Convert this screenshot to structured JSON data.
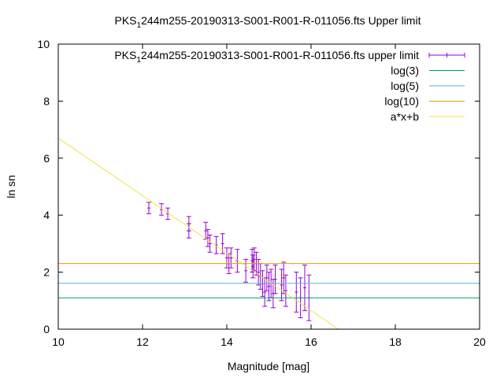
{
  "chart_data": {
    "type": "scatter",
    "title_parts": [
      "PKS",
      "1",
      "244m255-20190313-S001-R001-R-011056.fts Upper limit"
    ],
    "xlabel": "Magnitude [mag]",
    "ylabel": "ln sn",
    "xlim": [
      10,
      20
    ],
    "ylim": [
      0,
      10
    ],
    "xticks": [
      "10",
      "12",
      "14",
      "16",
      "18",
      "20"
    ],
    "yticks": [
      "0",
      "2",
      "4",
      "6",
      "8",
      "10"
    ],
    "grid": false,
    "legend_position": "top-right",
    "series": [
      {
        "name_parts": [
          "PKS",
          "1",
          "244m255-20190313-S001-R001-R-011056.fts upper limit"
        ],
        "kind": "errorbars",
        "color": "#9400d3",
        "points": [
          {
            "x": 12.15,
            "y": 4.25,
            "err": 0.2
          },
          {
            "x": 12.45,
            "y": 4.2,
            "err": 0.2
          },
          {
            "x": 12.6,
            "y": 4.05,
            "err": 0.2
          },
          {
            "x": 13.1,
            "y": 3.7,
            "err": 0.25
          },
          {
            "x": 13.1,
            "y": 3.45,
            "err": 0.25
          },
          {
            "x": 13.5,
            "y": 3.45,
            "err": 0.3
          },
          {
            "x": 13.55,
            "y": 3.2,
            "err": 0.3
          },
          {
            "x": 13.6,
            "y": 3.0,
            "err": 0.3
          },
          {
            "x": 13.75,
            "y": 2.95,
            "err": 0.3
          },
          {
            "x": 13.9,
            "y": 3.0,
            "err": 0.35
          },
          {
            "x": 14.0,
            "y": 2.5,
            "err": 0.35
          },
          {
            "x": 14.05,
            "y": 2.3,
            "err": 0.35
          },
          {
            "x": 14.1,
            "y": 2.5,
            "err": 0.35
          },
          {
            "x": 14.25,
            "y": 2.4,
            "err": 0.4
          },
          {
            "x": 14.45,
            "y": 2.05,
            "err": 0.4
          },
          {
            "x": 14.6,
            "y": 2.4,
            "err": 0.4
          },
          {
            "x": 14.62,
            "y": 2.2,
            "err": 0.4
          },
          {
            "x": 14.65,
            "y": 2.45,
            "err": 0.4
          },
          {
            "x": 14.7,
            "y": 2.3,
            "err": 0.4
          },
          {
            "x": 14.75,
            "y": 2.0,
            "err": 0.45
          },
          {
            "x": 14.8,
            "y": 1.85,
            "err": 0.45
          },
          {
            "x": 14.85,
            "y": 1.6,
            "err": 0.45
          },
          {
            "x": 14.9,
            "y": 1.3,
            "err": 0.5
          },
          {
            "x": 14.95,
            "y": 1.8,
            "err": 0.45
          },
          {
            "x": 15.0,
            "y": 1.5,
            "err": 0.5
          },
          {
            "x": 15.05,
            "y": 1.6,
            "err": 0.5
          },
          {
            "x": 15.1,
            "y": 1.25,
            "err": 0.5
          },
          {
            "x": 15.15,
            "y": 1.75,
            "err": 0.5
          },
          {
            "x": 15.3,
            "y": 1.55,
            "err": 0.55
          },
          {
            "x": 15.35,
            "y": 1.8,
            "err": 0.55
          },
          {
            "x": 15.4,
            "y": 1.35,
            "err": 0.55
          },
          {
            "x": 15.65,
            "y": 1.3,
            "err": 0.7
          },
          {
            "x": 15.75,
            "y": 1.1,
            "err": 0.7
          },
          {
            "x": 15.85,
            "y": 1.45,
            "err": 0.8
          },
          {
            "x": 15.95,
            "y": 1.1,
            "err": 0.8
          }
        ]
      },
      {
        "name": "log(3)",
        "kind": "hline",
        "color": "#009e73",
        "y": 1.0986
      },
      {
        "name": "log(5)",
        "kind": "hline",
        "color": "#56b4e9",
        "y": 1.6094
      },
      {
        "name": "log(10)",
        "kind": "hline",
        "color": "#e69f00",
        "y": 2.3026
      },
      {
        "name": "a*x+b",
        "kind": "line",
        "color": "#f0e442",
        "x": [
          10,
          16.65
        ],
        "y": [
          6.7,
          0
        ]
      }
    ]
  }
}
